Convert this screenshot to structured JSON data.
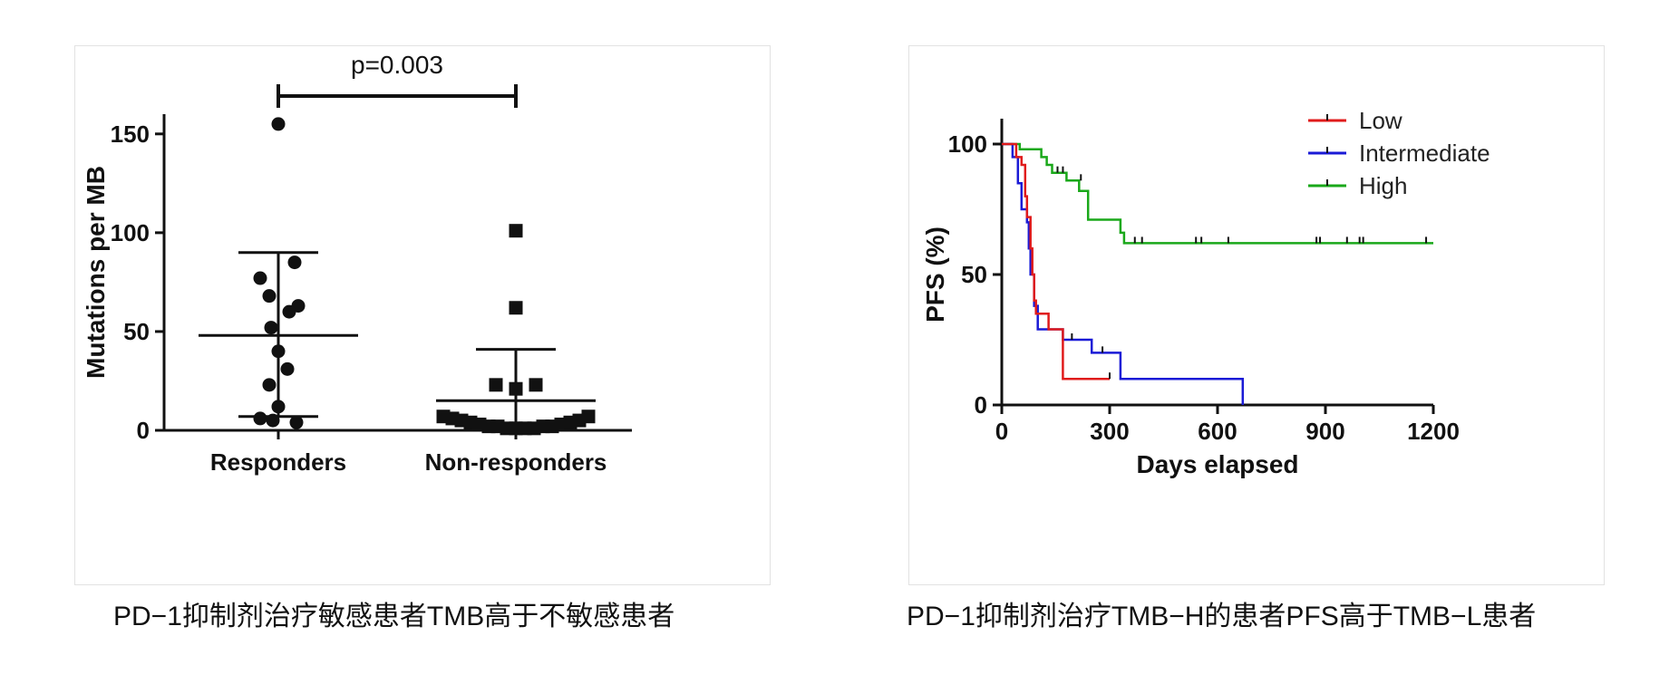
{
  "captions": {
    "left": "PD−1抑制剂治疗敏感患者TMB高于不敏感患者",
    "right": "PD−1抑制剂治疗TMB−H的患者PFS高于TMB−L患者"
  },
  "chart_data": [
    {
      "type": "scatter",
      "ylabel": "Mutations per MB",
      "xlabel": "",
      "categories": [
        "Responders",
        "Non-responders"
      ],
      "ylim": [
        0,
        160
      ],
      "yticks": [
        0,
        50,
        100,
        150
      ],
      "annotation": "p=0.003",
      "series": [
        {
          "category": "Responders",
          "marker": "circle",
          "values": [
            155,
            85,
            77,
            68,
            63,
            60,
            52,
            40,
            31,
            23,
            12,
            6,
            4,
            5
          ],
          "mean": 48,
          "sd_upper": 90,
          "sd_lower": 7
        },
        {
          "category": "Non-responders",
          "marker": "square",
          "values": [
            101,
            62,
            23,
            23,
            21,
            7,
            6,
            5,
            4,
            3,
            2,
            2,
            1,
            1,
            1,
            1,
            2,
            2,
            3,
            4,
            5,
            7
          ],
          "mean": 15,
          "sd_upper": 41,
          "sd_lower": 0
        }
      ]
    },
    {
      "type": "line",
      "subtype": "kaplan-meier",
      "xlabel": "Days elapsed",
      "ylabel": "PFS (%)",
      "xlim": [
        0,
        1200
      ],
      "ylim": [
        0,
        100
      ],
      "xticks": [
        0,
        300,
        600,
        900,
        1200
      ],
      "yticks": [
        0,
        50,
        100
      ],
      "legend_position": "top-right",
      "series": [
        {
          "name": "Low",
          "color": "#e01b1b",
          "steps": [
            [
              0,
              100
            ],
            [
              40,
              100
            ],
            [
              40,
              95
            ],
            [
              55,
              95
            ],
            [
              55,
              92
            ],
            [
              65,
              92
            ],
            [
              65,
              80
            ],
            [
              70,
              80
            ],
            [
              70,
              72
            ],
            [
              80,
              72
            ],
            [
              80,
              60
            ],
            [
              85,
              60
            ],
            [
              85,
              50
            ],
            [
              90,
              50
            ],
            [
              90,
              40
            ],
            [
              95,
              40
            ],
            [
              95,
              35
            ],
            [
              130,
              35
            ],
            [
              130,
              29
            ],
            [
              170,
              29
            ],
            [
              170,
              10
            ],
            [
              300,
              10
            ]
          ],
          "censors": [
            [
              300,
              10
            ]
          ]
        },
        {
          "name": "Intermediate",
          "color": "#1a1ad6",
          "steps": [
            [
              0,
              100
            ],
            [
              30,
              100
            ],
            [
              30,
              95
            ],
            [
              45,
              95
            ],
            [
              45,
              85
            ],
            [
              55,
              85
            ],
            [
              55,
              75
            ],
            [
              70,
              75
            ],
            [
              70,
              70
            ],
            [
              75,
              70
            ],
            [
              75,
              60
            ],
            [
              80,
              60
            ],
            [
              80,
              50
            ],
            [
              90,
              50
            ],
            [
              90,
              38
            ],
            [
              100,
              38
            ],
            [
              100,
              29
            ],
            [
              170,
              29
            ],
            [
              170,
              25
            ],
            [
              250,
              25
            ],
            [
              250,
              20
            ],
            [
              330,
              20
            ],
            [
              330,
              10
            ],
            [
              670,
              10
            ],
            [
              670,
              0
            ]
          ],
          "censors": [
            [
              195,
              25
            ],
            [
              280,
              20
            ]
          ]
        },
        {
          "name": "High",
          "color": "#1aa81a",
          "steps": [
            [
              0,
              100
            ],
            [
              50,
              100
            ],
            [
              50,
              98
            ],
            [
              110,
              98
            ],
            [
              110,
              95
            ],
            [
              125,
              95
            ],
            [
              125,
              92
            ],
            [
              140,
              92
            ],
            [
              140,
              89
            ],
            [
              180,
              89
            ],
            [
              180,
              86
            ],
            [
              215,
              86
            ],
            [
              215,
              82
            ],
            [
              240,
              82
            ],
            [
              240,
              71
            ],
            [
              330,
              71
            ],
            [
              330,
              66
            ],
            [
              340,
              66
            ],
            [
              340,
              62
            ],
            [
              1200,
              62
            ]
          ],
          "censors": [
            [
              155,
              89
            ],
            [
              170,
              89
            ],
            [
              220,
              86
            ],
            [
              370,
              62
            ],
            [
              390,
              62
            ],
            [
              540,
              62
            ],
            [
              555,
              62
            ],
            [
              630,
              62
            ],
            [
              875,
              62
            ],
            [
              885,
              62
            ],
            [
              960,
              62
            ],
            [
              995,
              62
            ],
            [
              1005,
              62
            ],
            [
              1180,
              62
            ]
          ]
        }
      ]
    }
  ]
}
